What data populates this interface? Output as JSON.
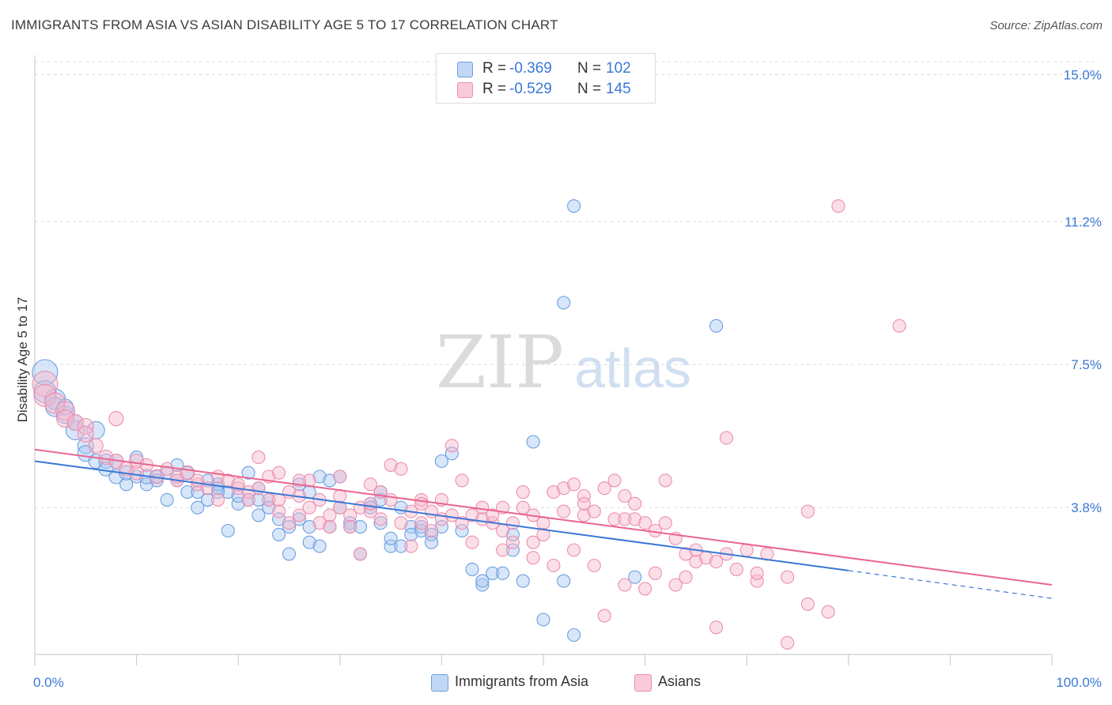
{
  "title": "IMMIGRANTS FROM ASIA VS ASIAN DISABILITY AGE 5 TO 17 CORRELATION CHART",
  "source": "Source: ZipAtlas.com",
  "watermark": {
    "zip": "ZIP",
    "atlas": "atlas"
  },
  "legend_top": [
    {
      "r_label": "R =",
      "r_value": "-0.369",
      "n_label": "N =",
      "n_value": "102"
    },
    {
      "r_label": "R =",
      "r_value": "-0.529",
      "n_label": "N =",
      "n_value": "145"
    }
  ],
  "legend_bottom": [
    "Immigrants from Asia",
    "Asians"
  ],
  "colors": {
    "blue_fill": "#a9c8f2",
    "blue_stroke": "#6d9fe0",
    "blue_line": "#3a78d4",
    "pink_fill": "#f6b8cb",
    "pink_stroke": "#ec8fae",
    "pink_line": "#e8648e",
    "tick_label": "#3a78d4",
    "grid": "#dcdcdc"
  },
  "chart_data": {
    "type": "scatter",
    "title": "IMMIGRANTS FROM ASIA VS ASIAN DISABILITY AGE 5 TO 17 CORRELATION CHART",
    "xlabel": "",
    "ylabel": "Disability Age 5 to 17",
    "xlim": [
      0,
      100
    ],
    "ylim": [
      0,
      15.5
    ],
    "x_tick_labels": [
      "0.0%",
      "100.0%"
    ],
    "y_ticks": [
      3.8,
      7.5,
      11.2,
      15.0
    ],
    "y_tick_labels": [
      "3.8%",
      "7.5%",
      "11.2%",
      "15.0%"
    ],
    "grid": true,
    "legend_position": "top-center",
    "series": [
      {
        "name": "Immigrants from Asia",
        "r": -0.369,
        "n": 102,
        "trend": {
          "x0": 0,
          "y0": 5.0,
          "x1": 80,
          "y1": 2.17,
          "dash_to_x": 100,
          "dash_to_y": 1.45
        },
        "points": [
          [
            1,
            7.3,
            14
          ],
          [
            1,
            6.8,
            12
          ],
          [
            2,
            6.6,
            11
          ],
          [
            2,
            6.4,
            10
          ],
          [
            3,
            6.2,
            9
          ],
          [
            3,
            6.4,
            8
          ],
          [
            4,
            5.8,
            10
          ],
          [
            4,
            6.0,
            8
          ],
          [
            5,
            5.4,
            8
          ],
          [
            5,
            5.2,
            8
          ],
          [
            6,
            5.0,
            7
          ],
          [
            6,
            5.8,
            9
          ],
          [
            7,
            5.0,
            7
          ],
          [
            7,
            4.8,
            7
          ],
          [
            8,
            4.6,
            7
          ],
          [
            8,
            5.0,
            7
          ],
          [
            9,
            4.4,
            6
          ],
          [
            9,
            4.7,
            7
          ],
          [
            10,
            4.6,
            6
          ],
          [
            10,
            5.1,
            6
          ],
          [
            11,
            4.4,
            6
          ],
          [
            11,
            4.6,
            7
          ],
          [
            12,
            4.6,
            6
          ],
          [
            12,
            4.5,
            6
          ],
          [
            13,
            4.7,
            6
          ],
          [
            13,
            4.0,
            6
          ],
          [
            14,
            4.5,
            6
          ],
          [
            14,
            4.9,
            6
          ],
          [
            15,
            4.2,
            6
          ],
          [
            15,
            4.7,
            6
          ],
          [
            16,
            4.2,
            6
          ],
          [
            16,
            3.8,
            6
          ],
          [
            17,
            4.0,
            6
          ],
          [
            17,
            4.5,
            6
          ],
          [
            18,
            4.3,
            6
          ],
          [
            18,
            4.4,
            6
          ],
          [
            19,
            4.2,
            6
          ],
          [
            19,
            3.2,
            6
          ],
          [
            20,
            3.9,
            6
          ],
          [
            20,
            4.1,
            6
          ],
          [
            21,
            4.0,
            6
          ],
          [
            21,
            4.7,
            6
          ],
          [
            22,
            4.0,
            6
          ],
          [
            22,
            3.6,
            6
          ],
          [
            23,
            4.0,
            6
          ],
          [
            23,
            3.8,
            6
          ],
          [
            24,
            3.1,
            6
          ],
          [
            24,
            3.5,
            6
          ],
          [
            25,
            2.6,
            6
          ],
          [
            25,
            3.3,
            6
          ],
          [
            26,
            3.5,
            6
          ],
          [
            26,
            4.4,
            6
          ],
          [
            27,
            4.2,
            6
          ],
          [
            27,
            2.9,
            6
          ],
          [
            28,
            4.6,
            6
          ],
          [
            28,
            2.8,
            6
          ],
          [
            29,
            4.5,
            6
          ],
          [
            29,
            3.3,
            6
          ],
          [
            30,
            4.6,
            6
          ],
          [
            30,
            3.8,
            6
          ],
          [
            31,
            3.4,
            6
          ],
          [
            31,
            3.3,
            6
          ],
          [
            32,
            3.3,
            6
          ],
          [
            32,
            2.6,
            6
          ],
          [
            33,
            3.9,
            6
          ],
          [
            33,
            3.8,
            6
          ],
          [
            34,
            4.2,
            6
          ],
          [
            34,
            3.4,
            6
          ],
          [
            35,
            2.8,
            6
          ],
          [
            35,
            3.0,
            6
          ],
          [
            36,
            2.8,
            6
          ],
          [
            36,
            3.8,
            6
          ],
          [
            37,
            3.3,
            6
          ],
          [
            37,
            3.1,
            6
          ],
          [
            38,
            3.3,
            6
          ],
          [
            38,
            3.2,
            6
          ],
          [
            39,
            3.1,
            6
          ],
          [
            39,
            2.9,
            6
          ],
          [
            40,
            5.0,
            6
          ],
          [
            40,
            3.3,
            6
          ],
          [
            41,
            5.2,
            6
          ],
          [
            42,
            3.2,
            6
          ],
          [
            43,
            2.2,
            6
          ],
          [
            44,
            1.8,
            6
          ],
          [
            44,
            1.9,
            6
          ],
          [
            45,
            2.1,
            6
          ],
          [
            46,
            2.1,
            6
          ],
          [
            47,
            3.1,
            6
          ],
          [
            47,
            2.7,
            6
          ],
          [
            48,
            1.9,
            6
          ],
          [
            49,
            5.5,
            6
          ],
          [
            50,
            0.9,
            6
          ],
          [
            52,
            1.9,
            6
          ],
          [
            53,
            11.6,
            6
          ],
          [
            53,
            0.5,
            6
          ],
          [
            52,
            9.1,
            6
          ],
          [
            59,
            2.0,
            6
          ],
          [
            67,
            8.5,
            6
          ],
          [
            34,
            4.0,
            6
          ],
          [
            27,
            3.3,
            6
          ],
          [
            22,
            4.3,
            6
          ],
          [
            18,
            4.2,
            6
          ]
        ]
      },
      {
        "name": "Asians",
        "r": -0.529,
        "n": 145,
        "trend": {
          "x0": 0,
          "y0": 5.3,
          "x1": 100,
          "y1": 1.8
        },
        "points": [
          [
            1,
            7.0,
            14
          ],
          [
            1,
            6.7,
            12
          ],
          [
            2,
            6.5,
            11
          ],
          [
            3,
            6.3,
            10
          ],
          [
            3,
            6.1,
            9
          ],
          [
            4,
            6.0,
            8
          ],
          [
            5,
            5.9,
            8
          ],
          [
            5,
            5.7,
            8
          ],
          [
            6,
            5.4,
            7
          ],
          [
            7,
            5.1,
            7
          ],
          [
            8,
            5.0,
            7
          ],
          [
            8,
            6.1,
            7
          ],
          [
            9,
            4.8,
            7
          ],
          [
            10,
            4.7,
            7
          ],
          [
            10,
            5.0,
            7
          ],
          [
            11,
            4.9,
            6
          ],
          [
            12,
            4.6,
            7
          ],
          [
            13,
            4.8,
            6
          ],
          [
            14,
            4.5,
            6
          ],
          [
            14,
            4.6,
            6
          ],
          [
            15,
            4.7,
            7
          ],
          [
            16,
            4.4,
            6
          ],
          [
            16,
            4.5,
            6
          ],
          [
            17,
            4.3,
            6
          ],
          [
            18,
            4.6,
            6
          ],
          [
            18,
            4.0,
            6
          ],
          [
            19,
            4.5,
            6
          ],
          [
            20,
            4.3,
            6
          ],
          [
            20,
            4.4,
            6
          ],
          [
            21,
            4.2,
            6
          ],
          [
            21,
            4.0,
            6
          ],
          [
            22,
            4.3,
            6
          ],
          [
            22,
            5.1,
            6
          ],
          [
            23,
            4.0,
            6
          ],
          [
            23,
            4.6,
            6
          ],
          [
            24,
            4.0,
            6
          ],
          [
            24,
            3.7,
            6
          ],
          [
            25,
            4.2,
            6
          ],
          [
            25,
            3.4,
            6
          ],
          [
            26,
            4.1,
            6
          ],
          [
            26,
            3.6,
            6
          ],
          [
            27,
            3.8,
            6
          ],
          [
            27,
            4.5,
            6
          ],
          [
            28,
            4.0,
            6
          ],
          [
            28,
            3.4,
            6
          ],
          [
            29,
            3.6,
            6
          ],
          [
            29,
            3.3,
            6
          ],
          [
            30,
            3.8,
            6
          ],
          [
            30,
            4.6,
            6
          ],
          [
            31,
            3.6,
            6
          ],
          [
            31,
            3.3,
            6
          ],
          [
            32,
            3.8,
            6
          ],
          [
            32,
            2.6,
            6
          ],
          [
            33,
            3.7,
            6
          ],
          [
            33,
            3.9,
            6
          ],
          [
            34,
            3.5,
            6
          ],
          [
            34,
            4.2,
            6
          ],
          [
            35,
            4.0,
            6
          ],
          [
            35,
            4.9,
            6
          ],
          [
            36,
            3.4,
            6
          ],
          [
            36,
            4.8,
            6
          ],
          [
            37,
            3.7,
            6
          ],
          [
            37,
            2.8,
            6
          ],
          [
            38,
            3.4,
            6
          ],
          [
            38,
            4.0,
            6
          ],
          [
            39,
            3.7,
            6
          ],
          [
            39,
            3.2,
            6
          ],
          [
            40,
            4.0,
            6
          ],
          [
            40,
            3.5,
            6
          ],
          [
            41,
            3.6,
            6
          ],
          [
            41,
            5.4,
            6
          ],
          [
            42,
            3.4,
            6
          ],
          [
            43,
            3.6,
            6
          ],
          [
            43,
            2.9,
            6
          ],
          [
            44,
            3.8,
            6
          ],
          [
            44,
            3.5,
            6
          ],
          [
            45,
            3.4,
            6
          ],
          [
            45,
            3.6,
            6
          ],
          [
            46,
            3.8,
            6
          ],
          [
            46,
            2.7,
            6
          ],
          [
            47,
            3.4,
            6
          ],
          [
            47,
            2.9,
            6
          ],
          [
            48,
            3.8,
            6
          ],
          [
            48,
            4.2,
            6
          ],
          [
            49,
            3.6,
            6
          ],
          [
            49,
            2.5,
            6
          ],
          [
            50,
            3.4,
            6
          ],
          [
            50,
            3.1,
            6
          ],
          [
            51,
            2.3,
            6
          ],
          [
            51,
            4.2,
            6
          ],
          [
            52,
            4.3,
            6
          ],
          [
            52,
            3.7,
            6
          ],
          [
            53,
            4.4,
            6
          ],
          [
            53,
            2.7,
            6
          ],
          [
            54,
            4.1,
            6
          ],
          [
            54,
            3.6,
            6
          ],
          [
            55,
            3.7,
            6
          ],
          [
            55,
            2.3,
            6
          ],
          [
            56,
            4.3,
            6
          ],
          [
            56,
            1.0,
            6
          ],
          [
            57,
            3.5,
            6
          ],
          [
            57,
            4.5,
            6
          ],
          [
            58,
            3.5,
            6
          ],
          [
            58,
            1.8,
            6
          ],
          [
            59,
            3.5,
            6
          ],
          [
            59,
            3.9,
            6
          ],
          [
            60,
            3.4,
            6
          ],
          [
            60,
            1.7,
            6
          ],
          [
            61,
            3.2,
            6
          ],
          [
            61,
            2.1,
            6
          ],
          [
            62,
            3.4,
            6
          ],
          [
            62,
            4.5,
            6
          ],
          [
            63,
            3.0,
            6
          ],
          [
            63,
            1.8,
            6
          ],
          [
            64,
            2.6,
            6
          ],
          [
            64,
            2.0,
            6
          ],
          [
            65,
            2.7,
            6
          ],
          [
            65,
            2.4,
            6
          ],
          [
            66,
            2.5,
            6
          ],
          [
            67,
            2.4,
            6
          ],
          [
            67,
            0.7,
            6
          ],
          [
            68,
            5.6,
            6
          ],
          [
            68,
            2.6,
            6
          ],
          [
            69,
            2.2,
            6
          ],
          [
            70,
            2.7,
            6
          ],
          [
            71,
            1.9,
            6
          ],
          [
            71,
            2.1,
            6
          ],
          [
            72,
            2.6,
            6
          ],
          [
            74,
            2.0,
            6
          ],
          [
            74,
            0.3,
            6
          ],
          [
            76,
            3.7,
            6
          ],
          [
            76,
            1.3,
            6
          ],
          [
            78,
            1.1,
            6
          ],
          [
            79,
            11.6,
            6
          ],
          [
            85,
            8.5,
            6
          ],
          [
            24,
            4.7,
            6
          ],
          [
            30,
            4.1,
            6
          ],
          [
            42,
            4.5,
            6
          ],
          [
            33,
            4.4,
            6
          ],
          [
            26,
            4.5,
            6
          ],
          [
            46,
            3.2,
            6
          ],
          [
            54,
            3.9,
            6
          ],
          [
            58,
            4.1,
            6
          ],
          [
            38,
            3.9,
            6
          ],
          [
            49,
            2.9,
            6
          ]
        ]
      }
    ]
  }
}
